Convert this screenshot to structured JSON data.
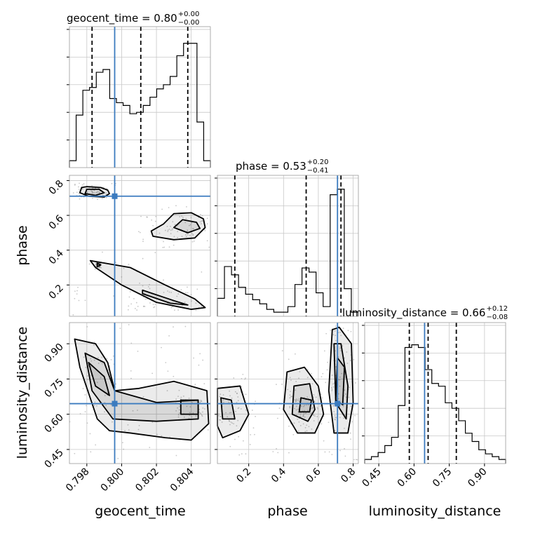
{
  "chart_data": {
    "type": "corner",
    "parameters": [
      "geocent_time",
      "phase",
      "luminosity_distance"
    ],
    "truth_color": "#3b7bbf",
    "grid": true,
    "titles": [
      {
        "param": "geocent_time",
        "main": "geocent_time = 0.80",
        "plus": "+0.00",
        "minus": "−0.00"
      },
      {
        "param": "phase",
        "main": "phase = 0.53",
        "plus": "+0.20",
        "minus": "−0.41"
      },
      {
        "param": "luminosity_distance",
        "main": "luminosity_distance = 0.66",
        "plus": "+0.12",
        "minus": "−0.08"
      }
    ],
    "axis_labels": {
      "x": [
        "geocent_time",
        "phase",
        "luminosity_distance"
      ],
      "y": [
        "phase",
        "luminosity_distance"
      ]
    },
    "ticks": {
      "geocent_time": {
        "range": [
          0.797,
          0.8051
        ],
        "values": [
          0.798,
          0.8,
          0.802,
          0.804
        ],
        "labels": [
          "0.798",
          "0.800",
          "0.802",
          "0.804"
        ]
      },
      "phase": {
        "range": [
          0.02,
          0.83
        ],
        "values": [
          0.2,
          0.4,
          0.6,
          0.8
        ],
        "labels": [
          "0.2",
          "0.4",
          "0.6",
          "0.8"
        ]
      },
      "luminosity_distance": {
        "range": [
          0.39,
          0.99
        ],
        "values": [
          0.45,
          0.6,
          0.75,
          0.9
        ],
        "labels": [
          "0.45",
          "0.60",
          "0.75",
          "0.90"
        ]
      }
    },
    "truths": {
      "geocent_time": 0.7996,
      "phase": 0.71,
      "luminosity_distance": 0.645
    },
    "quantiles": {
      "geocent_time": [
        0.7983,
        0.8011,
        0.8038
      ],
      "phase": [
        0.12,
        0.53,
        0.73
      ],
      "luminosity_distance": [
        0.58,
        0.66,
        0.78
      ]
    },
    "histograms": {
      "geocent_time": {
        "edges_range": [
          0.797,
          0.8051
        ],
        "counts": [
          0.05,
          0.38,
          0.56,
          0.58,
          0.69,
          0.71,
          0.5,
          0.47,
          0.45,
          0.39,
          0.4,
          0.45,
          0.51,
          0.57,
          0.6,
          0.66,
          0.81,
          0.9,
          0.9,
          0.33,
          0.05
        ]
      },
      "phase": {
        "edges_range": [
          0.02,
          0.83
        ],
        "counts": [
          0.13,
          0.36,
          0.3,
          0.21,
          0.16,
          0.12,
          0.09,
          0.05,
          0.03,
          0.03,
          0.07,
          0.23,
          0.35,
          0.32,
          0.17,
          0.07,
          0.88,
          0.92,
          0.2,
          0.03
        ]
      },
      "luminosity_distance": {
        "edges_range": [
          0.39,
          0.99
        ],
        "counts": [
          0.03,
          0.05,
          0.08,
          0.13,
          0.19,
          0.42,
          0.84,
          0.86,
          0.84,
          0.68,
          0.58,
          0.56,
          0.44,
          0.4,
          0.31,
          0.22,
          0.16,
          0.1,
          0.07,
          0.05,
          0.03
        ]
      }
    },
    "contours": {
      "phase_vs_geocent_time": [
        {
          "x": [
            0.7977,
            0.798,
            0.7988,
            0.7992,
            0.7993,
            0.799,
            0.7981,
            0.7976
          ],
          "y": [
            0.76,
            0.765,
            0.76,
            0.745,
            0.725,
            0.705,
            0.71,
            0.73
          ]
        },
        {
          "x": [
            0.798,
            0.7987,
            0.799,
            0.7985,
            0.7979
          ],
          "y": [
            0.75,
            0.75,
            0.73,
            0.715,
            0.725
          ]
        },
        {
          "x": [
            0.803,
            0.804,
            0.8047,
            0.8048,
            0.8042,
            0.803,
            0.8018,
            0.8017,
            0.8024
          ],
          "y": [
            0.61,
            0.615,
            0.58,
            0.53,
            0.47,
            0.46,
            0.48,
            0.51,
            0.55
          ]
        },
        {
          "x": [
            0.8035,
            0.8043,
            0.8045,
            0.8038,
            0.803
          ],
          "y": [
            0.575,
            0.56,
            0.525,
            0.5,
            0.53
          ]
        },
        {
          "x": [
            0.7982,
            0.8005,
            0.8025,
            0.8042,
            0.8048,
            0.804,
            0.802,
            0.8,
            0.7985
          ],
          "y": [
            0.34,
            0.3,
            0.2,
            0.12,
            0.07,
            0.06,
            0.1,
            0.2,
            0.3
          ]
        },
        {
          "x": [
            0.8012,
            0.803,
            0.8038,
            0.8028,
            0.8012
          ],
          "y": [
            0.17,
            0.11,
            0.085,
            0.095,
            0.15
          ]
        },
        {
          "x": [
            0.7986,
            0.7988,
            0.7986
          ],
          "y": [
            0.305,
            0.315,
            0.325
          ]
        }
      ],
      "luminosity_distance_vs_geocent_time": [
        {
          "x": [
            0.7973,
            0.7985,
            0.7992,
            0.7996,
            0.801,
            0.803,
            0.8049,
            0.805,
            0.804,
            0.8025,
            0.8005,
            0.7993,
            0.7986,
            0.7976
          ],
          "y": [
            0.92,
            0.9,
            0.82,
            0.7,
            0.71,
            0.74,
            0.7,
            0.56,
            0.49,
            0.5,
            0.52,
            0.53,
            0.58,
            0.8
          ]
        },
        {
          "x": [
            0.7979,
            0.799,
            0.7996,
            0.802,
            0.8044,
            0.8044,
            0.802,
            0.7995,
            0.7983
          ],
          "y": [
            0.86,
            0.82,
            0.7,
            0.65,
            0.66,
            0.58,
            0.57,
            0.58,
            0.7
          ]
        },
        {
          "x": [
            0.7981,
            0.799,
            0.7993,
            0.7985
          ],
          "y": [
            0.82,
            0.76,
            0.68,
            0.72
          ]
        },
        {
          "x": [
            0.8034,
            0.8044,
            0.8044,
            0.8034
          ],
          "y": [
            0.66,
            0.66,
            0.6,
            0.6
          ]
        }
      ],
      "luminosity_distance_vs_phase": [
        {
          "x": [
            0.02,
            0.15,
            0.2,
            0.15,
            0.05,
            0.02
          ],
          "y": [
            0.71,
            0.72,
            0.6,
            0.53,
            0.5,
            0.55
          ]
        },
        {
          "x": [
            0.04,
            0.1,
            0.12,
            0.05
          ],
          "y": [
            0.67,
            0.66,
            0.58,
            0.58
          ]
        },
        {
          "x": [
            0.42,
            0.52,
            0.6,
            0.63,
            0.58,
            0.48,
            0.4
          ],
          "y": [
            0.78,
            0.8,
            0.72,
            0.6,
            0.52,
            0.52,
            0.62
          ]
        },
        {
          "x": [
            0.46,
            0.55,
            0.58,
            0.54,
            0.45
          ],
          "y": [
            0.72,
            0.73,
            0.62,
            0.57,
            0.6
          ]
        },
        {
          "x": [
            0.5,
            0.56,
            0.55,
            0.49
          ],
          "y": [
            0.67,
            0.66,
            0.61,
            0.61
          ]
        },
        {
          "x": [
            0.68,
            0.72,
            0.79,
            0.8,
            0.77,
            0.69,
            0.66
          ],
          "y": [
            0.96,
            0.97,
            0.9,
            0.65,
            0.52,
            0.52,
            0.7
          ]
        },
        {
          "x": [
            0.69,
            0.73,
            0.77,
            0.76,
            0.7
          ],
          "y": [
            0.9,
            0.9,
            0.72,
            0.58,
            0.65
          ]
        },
        {
          "x": [
            0.71,
            0.75,
            0.74,
            0.7
          ],
          "y": [
            0.84,
            0.8,
            0.64,
            0.66
          ]
        }
      ]
    }
  }
}
